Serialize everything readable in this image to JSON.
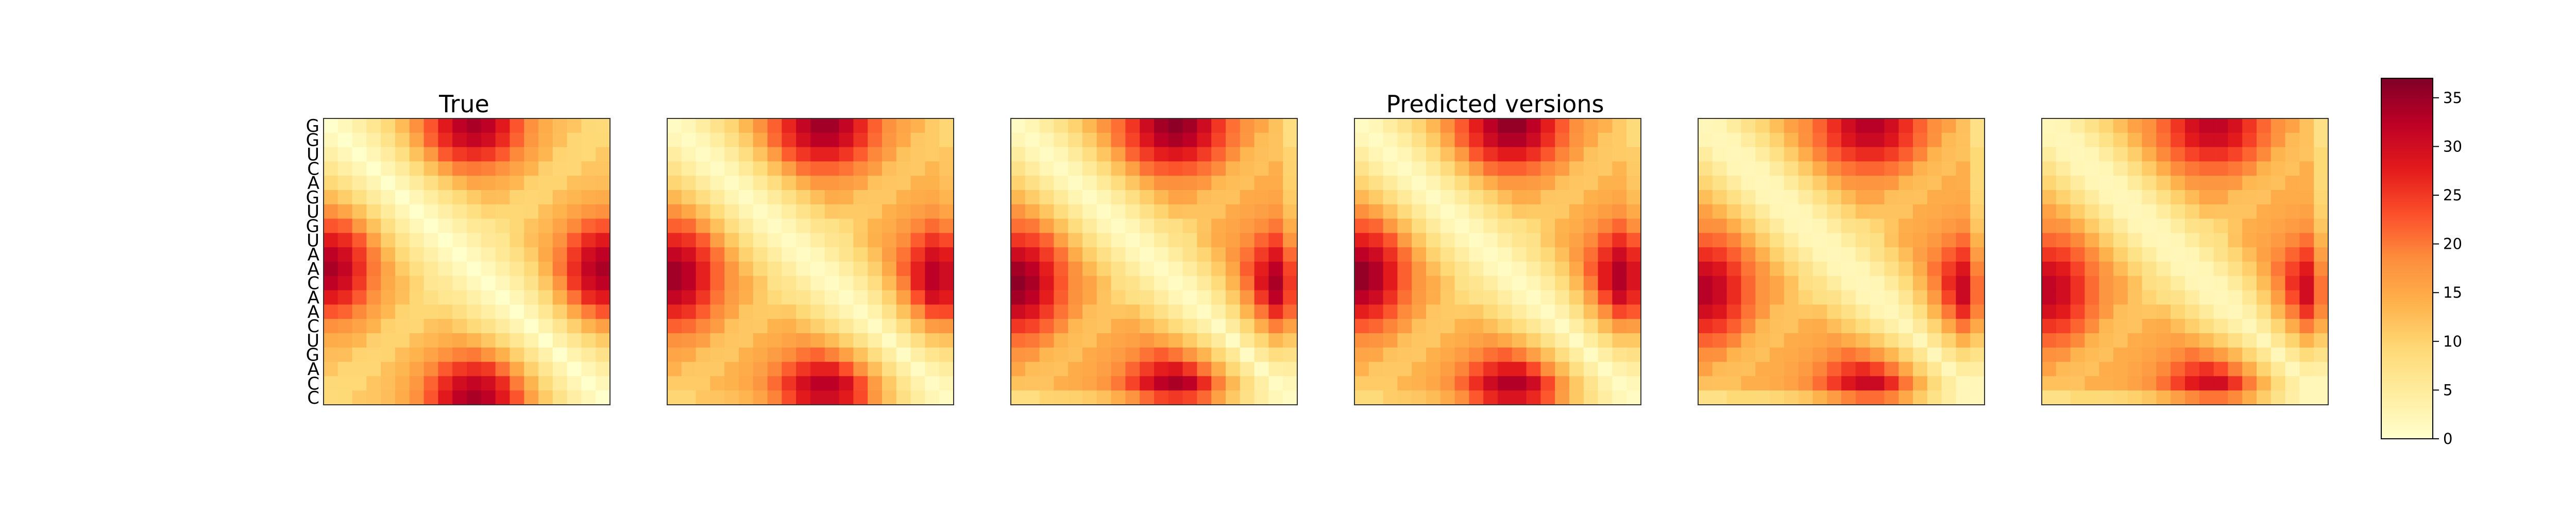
{
  "chart_data": {
    "type": "heatmap",
    "colormap": "YlOrRd",
    "sequence": [
      "G",
      "G",
      "U",
      "C",
      "A",
      "G",
      "U",
      "G",
      "U",
      "A",
      "A",
      "C",
      "A",
      "A",
      "C",
      "U",
      "G",
      "A",
      "C",
      "C"
    ],
    "colorbar": {
      "vmin": 0,
      "vmax": 37,
      "ticks": [
        "0",
        "5",
        "10",
        "15",
        "20",
        "25",
        "30",
        "35"
      ]
    },
    "titles": {
      "true": "True",
      "predicted": "Predicted versions"
    },
    "panels": [
      {
        "id": "true",
        "title": "True",
        "center": 10,
        "peak": 35,
        "band": 0,
        "bg": 11,
        "diag": 0
      },
      {
        "id": "pred1",
        "center": 10.5,
        "peak": 36,
        "band": 0.2,
        "bg": 13,
        "diag": 1
      },
      {
        "id": "pred2",
        "center": 11,
        "peak": 37,
        "band": 0.5,
        "bg": 14,
        "diag": 1
      },
      {
        "id": "pred3",
        "center": 10.5,
        "peak": 37,
        "band": 0.3,
        "bg": 13,
        "diag": 1
      },
      {
        "id": "pred4",
        "center": 11.5,
        "peak": 34,
        "band": 0.6,
        "bg": 14,
        "diag": 2
      },
      {
        "id": "pred5",
        "center": 11.5,
        "peak": 33,
        "band": 0.6,
        "bg": 14,
        "diag": 2
      }
    ]
  }
}
